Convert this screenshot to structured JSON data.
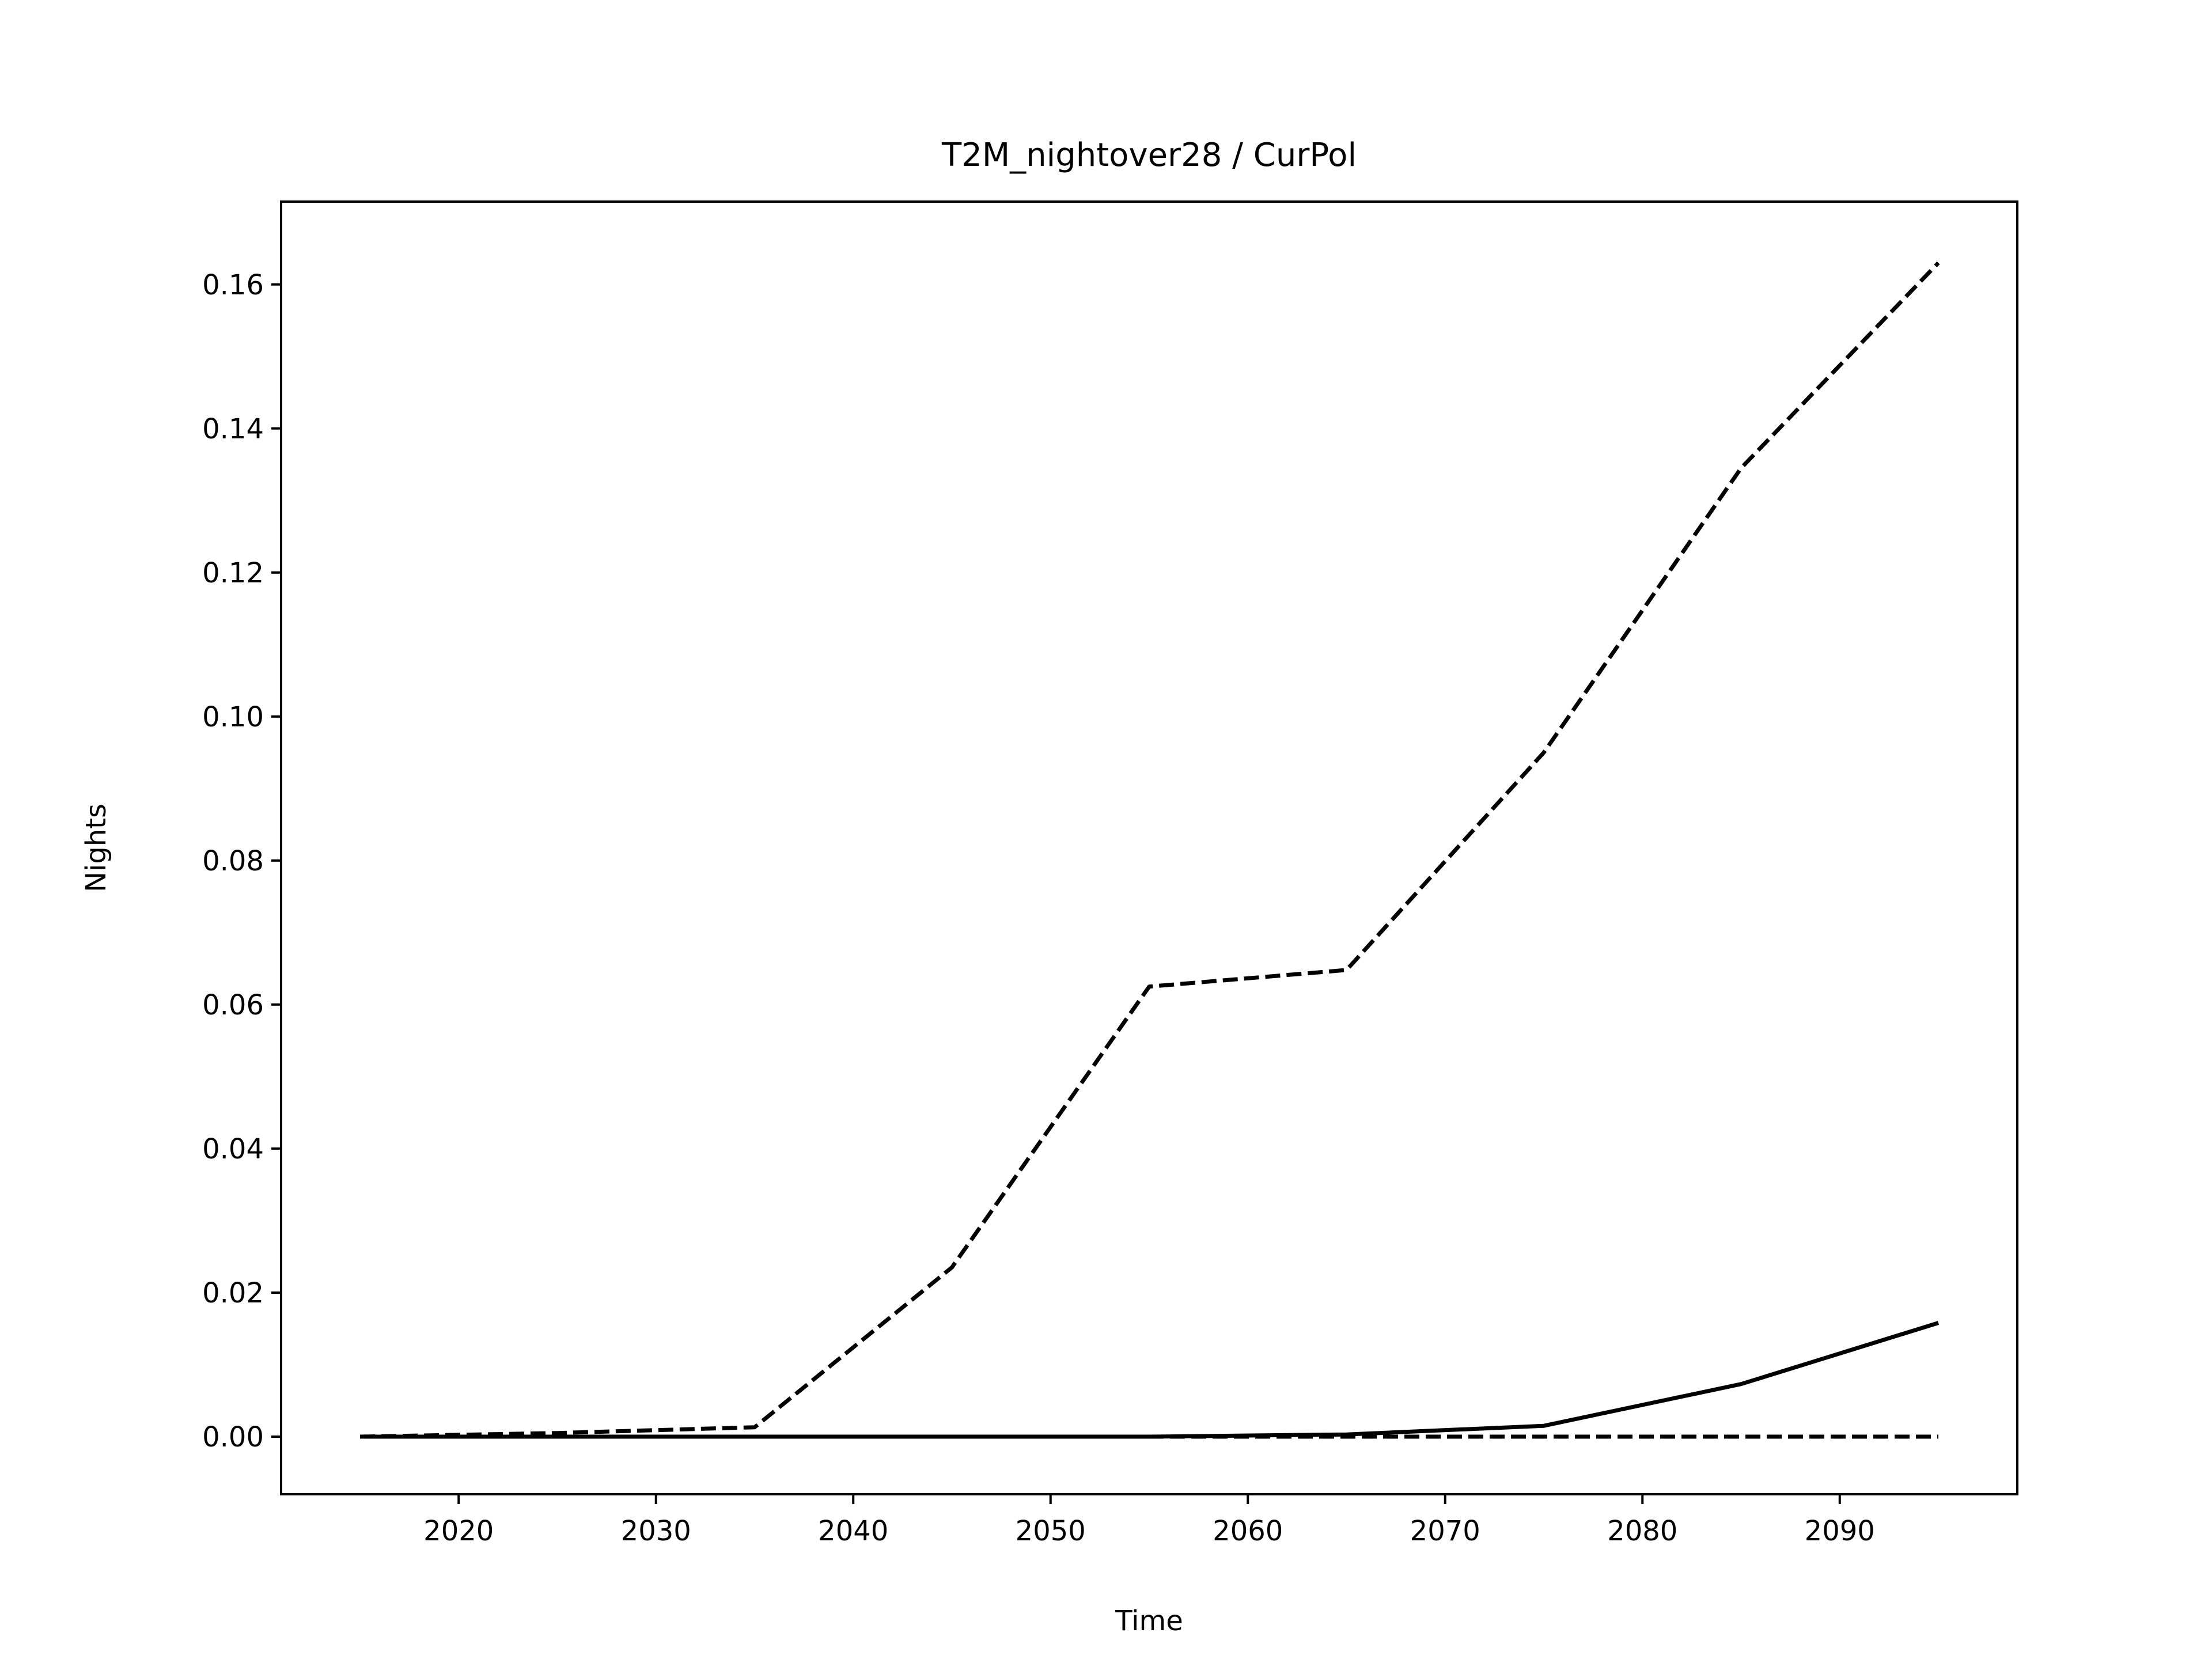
{
  "chart_data": {
    "type": "line",
    "title": "T2M_nightover28 / CurPol",
    "xlabel": "Time",
    "ylabel": "Nights",
    "xlim": [
      2011,
      2099
    ],
    "ylim": [
      -0.008,
      0.1715
    ],
    "xticks": [
      2020,
      2030,
      2040,
      2050,
      2060,
      2070,
      2080,
      2090
    ],
    "xtick_labels": [
      "2020",
      "2030",
      "2040",
      "2050",
      "2060",
      "2070",
      "2080",
      "2090"
    ],
    "yticks": [
      0.0,
      0.02,
      0.04,
      0.06,
      0.08,
      0.1,
      0.12,
      0.14,
      0.16
    ],
    "ytick_labels": [
      "0.00",
      "0.02",
      "0.04",
      "0.06",
      "0.08",
      "0.10",
      "0.12",
      "0.14",
      "0.16"
    ],
    "grid": false,
    "series": [
      {
        "style": "dashed",
        "color": "#000000",
        "x": [
          2015,
          2025,
          2035,
          2045,
          2055,
          2065,
          2075,
          2085,
          2095
        ],
        "values": [
          0.0,
          0.0005,
          0.0013,
          0.0235,
          0.0625,
          0.0648,
          0.095,
          0.1345,
          0.163
        ]
      },
      {
        "style": "solid",
        "color": "#000000",
        "x": [
          2015,
          2025,
          2035,
          2045,
          2055,
          2065,
          2075,
          2085,
          2095
        ],
        "values": [
          0.0,
          0.0,
          0.0,
          0.0,
          0.0,
          0.0003,
          0.0015,
          0.0073,
          0.0158
        ]
      },
      {
        "style": "dashed",
        "color": "#000000",
        "x": [
          2015,
          2025,
          2035,
          2045,
          2055,
          2065,
          2075,
          2085,
          2095
        ],
        "values": [
          0.0,
          0.0,
          0.0,
          0.0,
          0.0,
          0.0,
          0.0,
          0.0,
          0.0
        ]
      }
    ]
  }
}
